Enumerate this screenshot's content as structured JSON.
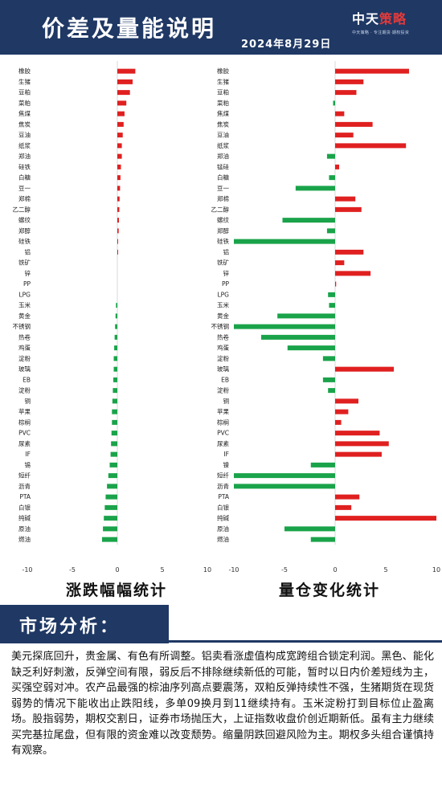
{
  "header": {
    "title": "价差及量能说明",
    "date": "2024年8月29日",
    "logo_main_a": "中天",
    "logo_main_b": "策略",
    "logo_sub": "中天策略 · 专注期货·期权投资"
  },
  "chart_data": [
    {
      "type": "bar",
      "orientation": "horizontal",
      "title": "涨跌幅幅统计",
      "xlim": [
        -10,
        10
      ],
      "xticks": [
        -10,
        -5,
        0,
        5,
        10
      ],
      "colors": {
        "positive": "#e02020",
        "negative": "#1aa34a"
      },
      "categories": [
        "橡胶",
        "生猪",
        "豆粕",
        "菜粕",
        "焦煤",
        "焦炭",
        "豆油",
        "纸浆",
        "郑油",
        "硅铁",
        "白糖",
        "豆一",
        "郑棉",
        "乙二醇",
        "螺纹",
        "郑醇",
        "硅铁",
        "铝",
        "铁矿",
        "锌",
        "PP",
        "LPG",
        "玉米",
        "黄金",
        "不锈钢",
        "热卷",
        "鸡蛋",
        "淀粉",
        "玻璃",
        "EB",
        "淀粉",
        "铜",
        "苹果",
        "棕榈",
        "PVC",
        "尿素",
        "IF",
        "锡",
        "短纤",
        "沥青",
        "PTA",
        "白银",
        "纯碱",
        "原油",
        "燃油"
      ],
      "values": [
        2.0,
        1.7,
        1.4,
        1.0,
        0.8,
        0.7,
        0.6,
        0.5,
        0.5,
        0.4,
        0.35,
        0.3,
        0.25,
        0.22,
        0.18,
        0.15,
        0.05,
        0.02,
        0.0,
        0.0,
        0.0,
        0.0,
        -0.15,
        -0.2,
        -0.25,
        -0.3,
        -0.35,
        -0.4,
        -0.4,
        -0.45,
        -0.5,
        -0.55,
        -0.6,
        -0.6,
        -0.65,
        -0.7,
        -0.75,
        -0.85,
        -1.0,
        -1.15,
        -1.3,
        -1.4,
        -1.5,
        -1.6,
        -1.7
      ]
    },
    {
      "type": "bar",
      "orientation": "horizontal",
      "title": "量仓变化统计",
      "xlim": [
        -10,
        10
      ],
      "xticks": [
        -10,
        -5,
        0,
        5,
        10
      ],
      "colors": {
        "positive": "#e02020",
        "negative": "#1aa34a"
      },
      "categories": [
        "橡胶",
        "生猪",
        "豆粕",
        "菜粕",
        "焦煤",
        "焦炭",
        "豆油",
        "纸浆",
        "郑油",
        "锰硅",
        "白糖",
        "豆一",
        "郑棉",
        "乙二醇",
        "螺纹",
        "郑醇",
        "硅铁",
        "铝",
        "铁矿",
        "锌",
        "PP",
        "LPG",
        "玉米",
        "黄金",
        "不锈钢",
        "热卷",
        "鸡蛋",
        "淀粉",
        "玻璃",
        "EB",
        "淀粉",
        "铜",
        "苹果",
        "棕榈",
        "PVC",
        "尿素",
        "IF",
        "镍",
        "短纤",
        "沥青",
        "PTA",
        "白银",
        "纯碱",
        "原油",
        "燃油"
      ],
      "values": [
        7.3,
        2.8,
        2.1,
        -0.2,
        0.9,
        3.7,
        1.8,
        7.0,
        -0.8,
        0.4,
        -0.6,
        -3.9,
        2.0,
        2.6,
        -5.2,
        -0.8,
        -10.0,
        2.8,
        0.9,
        3.5,
        0.1,
        -0.7,
        -0.6,
        -5.7,
        -10.0,
        -7.3,
        -4.7,
        -1.2,
        5.8,
        -1.2,
        -0.7,
        2.3,
        1.3,
        0.6,
        4.4,
        5.3,
        4.6,
        -2.4,
        -10.0,
        -10.0,
        2.4,
        1.6,
        10.0,
        -5.0,
        -2.4
      ]
    }
  ],
  "section": {
    "title": "市场分析："
  },
  "analysis": {
    "text": "美元探底回升，贵金属、有色有所调整。铝卖看涨虚值构成宽跨组合锁定利润。黑色、能化缺乏利好刺激，反弹空间有限，弱反后不排除继续新低的可能，暂时以日内价差短线为主，买强空弱对冲。农产品最强的棕油序列高点要震荡，双粕反弹持续性不强，生猪期货在现货弱势的情况下能收出止跌阳线，多单09换月到11继续持有。玉米淀粉打到目标位止盈离场。股指弱势，期权交割日，证券市场抛压大，上证指数收盘价创近期新低。虽有主力继续买完基拉尾盘，但有限的资金难以改变颓势。缩量阴跌回避风险为主。期权多头组合谨慎持有观察。"
  }
}
